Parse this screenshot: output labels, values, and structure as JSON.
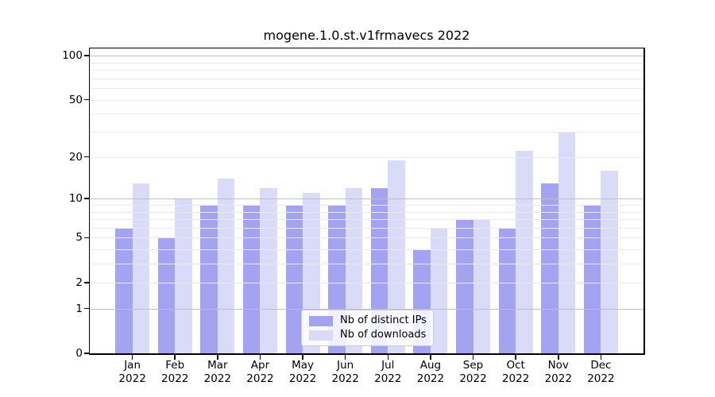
{
  "title": "mogene.1.0.st.v1frmavecs 2022",
  "chart_data": {
    "type": "bar",
    "title": "mogene.1.0.st.v1frmavecs 2022",
    "xlabel": "",
    "ylabel": "",
    "categories": [
      "Jan 2022",
      "Feb 2022",
      "Mar 2022",
      "Apr 2022",
      "May 2022",
      "Jun 2022",
      "Jul 2022",
      "Aug 2022",
      "Sep 2022",
      "Oct 2022",
      "Nov 2022",
      "Dec 2022"
    ],
    "series": [
      {
        "name": "Nb of distinct IPs",
        "color": "#a3a3f2",
        "values": [
          6,
          5,
          9,
          9,
          9,
          9,
          12,
          4,
          7,
          6,
          13,
          9
        ]
      },
      {
        "name": "Nb of downloads",
        "color": "#dadaf9",
        "values": [
          13,
          10,
          14,
          12,
          11,
          12,
          19,
          6,
          7,
          22,
          30,
          16
        ]
      }
    ],
    "y_axis": {
      "scale": "log1p",
      "ticks": [
        0,
        1,
        2,
        5,
        10,
        20,
        50,
        100
      ],
      "minor_gridlines": [
        2,
        3,
        4,
        5,
        6,
        7,
        8,
        9,
        20,
        30,
        40,
        50,
        60,
        70,
        80,
        90
      ],
      "major_gridlines": [
        1,
        10,
        100
      ],
      "top_value": 112
    },
    "grid": true,
    "legend_position": "lower center"
  },
  "legend": {
    "items": [
      {
        "label": "Nb of distinct IPs"
      },
      {
        "label": "Nb of downloads"
      }
    ]
  },
  "colors": {
    "bar_ips": "#a3a3f2",
    "bar_downloads": "#dadaf9",
    "grid_minor": "#eaeaea",
    "grid_major": "#c0c0c0",
    "axis": "#000000",
    "text": "#000000",
    "legend_border": "#cccccc",
    "background": "#ffffff"
  }
}
